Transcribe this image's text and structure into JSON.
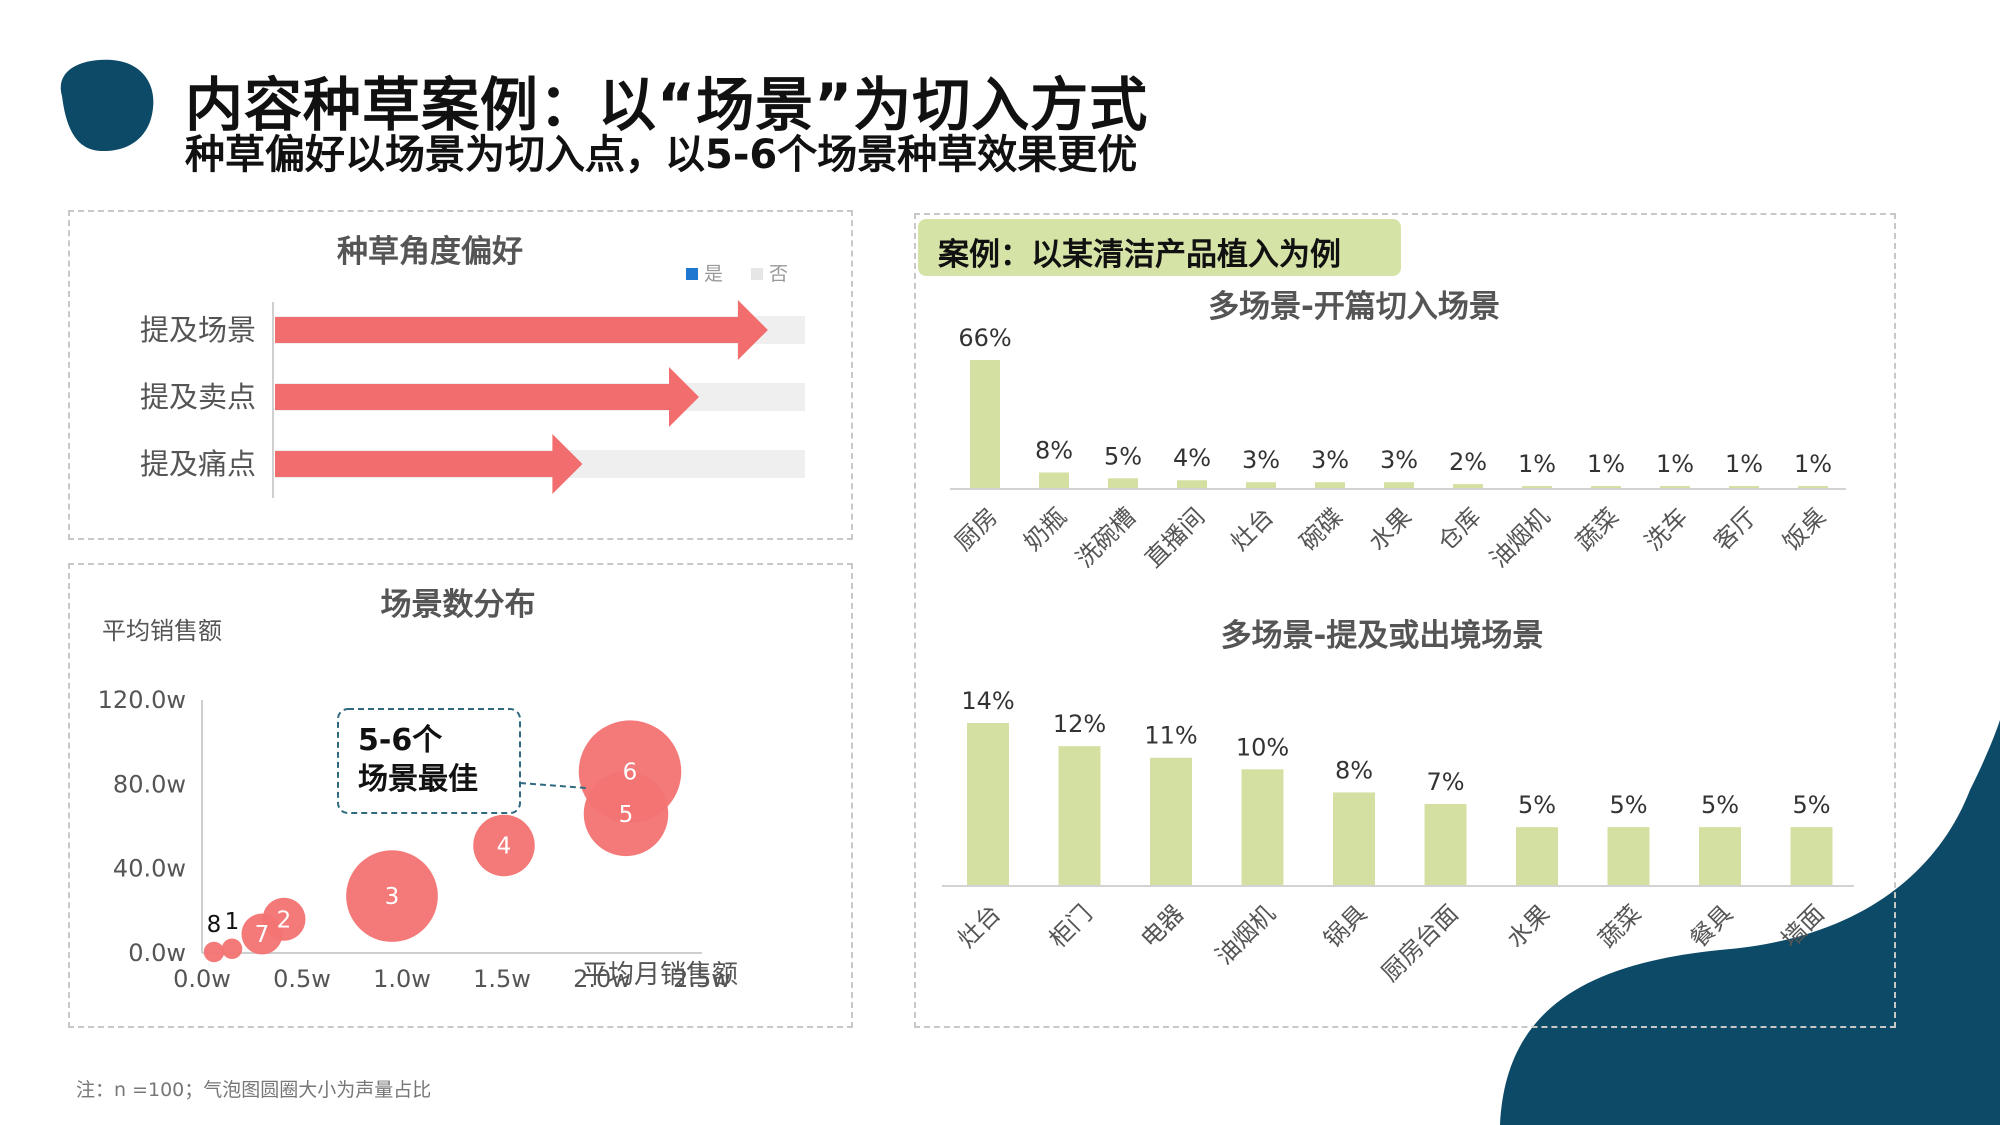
{
  "header": {
    "title": "内容种草案例：以“场景”为切入方式",
    "subtitle": "种草偏好以场景为切入点，以5-6个场景种草效果更优"
  },
  "colors": {
    "brand_dark": "#0c4a67",
    "arrow_red": "#f26d6d",
    "bubble_red": "#f37373",
    "bar_green": "#d4e0a1",
    "badge_green": "#d6e3a7",
    "track_gray": "#efefef",
    "legend_yes": "#1f77d0",
    "legend_no": "#e6e6e6"
  },
  "footnote": "注：n =100；气泡图圆圈大小为声量占比",
  "case_badge": "案例：以某清洁产品植入为例",
  "callout": {
    "line1": "5-6个",
    "line2": "场景最佳"
  },
  "chart_data": [
    {
      "type": "bar",
      "orientation": "horizontal",
      "title": "种草角度偏好",
      "categories": [
        "提及场景",
        "提及卖点",
        "提及痛点"
      ],
      "series": [
        {
          "name": "是",
          "values": [
            0.93,
            0.8,
            0.58
          ]
        },
        {
          "name": "否",
          "values": [
            0.07,
            0.2,
            0.42
          ]
        }
      ],
      "legend": "top-right",
      "legend_labels": [
        "是",
        "否"
      ]
    },
    {
      "type": "scatter",
      "subtype": "bubble",
      "title": "场景数分布",
      "xlabel": "平均月销售额",
      "ylabel": "平均销售额",
      "xlim": [
        0,
        2.5
      ],
      "ylim": [
        0,
        120
      ],
      "x_ticks": [
        "0.0w",
        "0.5w",
        "1.0w",
        "1.5w",
        "2.0w",
        "2.5w"
      ],
      "y_ticks": [
        "0.0w",
        "40.0w",
        "80.0w",
        "120.0w"
      ],
      "points": [
        {
          "label": "8",
          "x": 0.06,
          "y": 0.5,
          "size": 0.5
        },
        {
          "label": "1",
          "x": 0.15,
          "y": 2,
          "size": 0.5
        },
        {
          "label": "7",
          "x": 0.3,
          "y": 9,
          "size": 2
        },
        {
          "label": "2",
          "x": 0.41,
          "y": 16,
          "size": 2.2
        },
        {
          "label": "3",
          "x": 0.95,
          "y": 27,
          "size": 10
        },
        {
          "label": "4",
          "x": 1.51,
          "y": 51,
          "size": 4.5
        },
        {
          "label": "5",
          "x": 2.12,
          "y": 66,
          "size": 8.5
        },
        {
          "label": "6",
          "x": 2.14,
          "y": 86,
          "size": 12.5
        }
      ]
    },
    {
      "type": "bar",
      "title": "多场景-开篇切入场景",
      "categories": [
        "厨房",
        "奶瓶",
        "洗碗槽",
        "直播间",
        "灶台",
        "碗碟",
        "水果",
        "仓库",
        "油烟机",
        "蔬菜",
        "洗车",
        "客厅",
        "饭桌"
      ],
      "values": [
        66,
        8,
        5,
        4,
        3,
        3,
        3,
        2,
        1,
        1,
        1,
        1,
        1
      ],
      "value_labels": [
        "66%",
        "8%",
        "5%",
        "4%",
        "3%",
        "3%",
        "3%",
        "2%",
        "1%",
        "1%",
        "1%",
        "1%",
        "1%"
      ],
      "ylim": [
        0,
        66
      ]
    },
    {
      "type": "bar",
      "title": "多场景-提及或出境场景",
      "categories": [
        "灶台",
        "柜门",
        "电器",
        "油烟机",
        "锅具",
        "厨房台面",
        "水果",
        "蔬菜",
        "餐具",
        "墙面"
      ],
      "values": [
        14,
        12,
        11,
        10,
        8,
        7,
        5,
        5,
        5,
        5
      ],
      "value_labels": [
        "14%",
        "12%",
        "11%",
        "10%",
        "8%",
        "7%",
        "5%",
        "5%",
        "5%",
        "5%"
      ],
      "ylim": [
        0,
        14
      ]
    }
  ]
}
